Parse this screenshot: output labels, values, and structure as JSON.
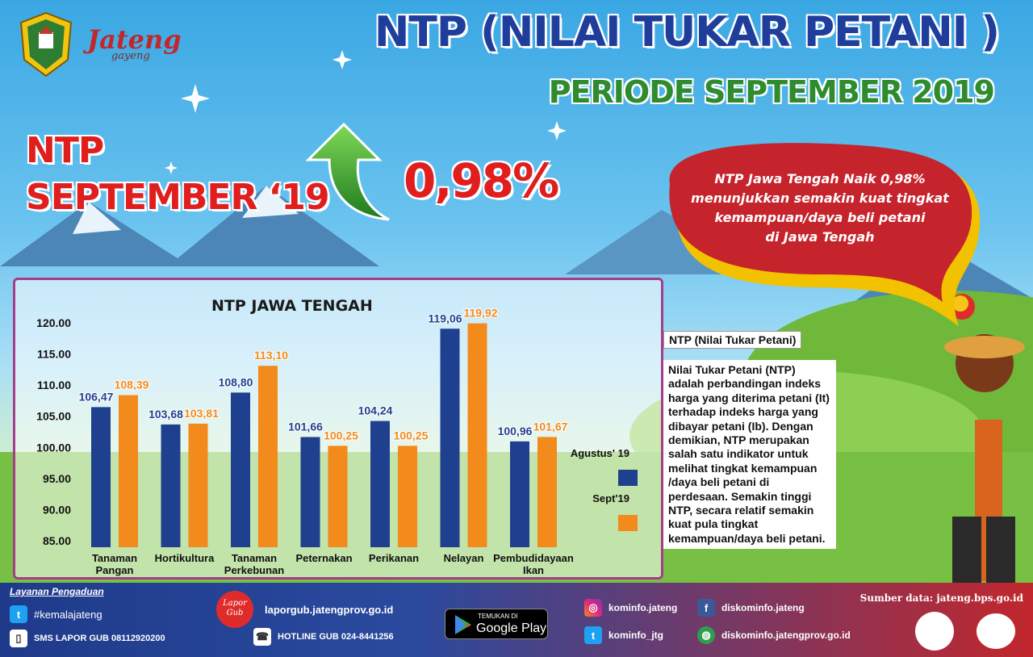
{
  "header": {
    "title": "NTP  (NILAI TUKAR PETANI )",
    "period": "PERIODE  SEPTEMBER 2019",
    "logo_text": "Jateng",
    "logo_sub": "gayeng"
  },
  "headline": {
    "label_line1": "NTP",
    "label_line2": "SEPTEMBER ‘19",
    "change": "0,98%"
  },
  "bubble": {
    "text_lines": [
      "NTP Jawa Tengah Naik 0,98%",
      "menunjukkan semakin kuat tingkat",
      "kemampuan/daya beli petani",
      "di Jawa Tengah"
    ]
  },
  "description": {
    "heading": "NTP (Nilai Tukar Petani)",
    "body": "Nilai Tukar Petani (NTP) adalah perbandingan indeks harga yang diterima petani (It) terhadap indeks harga yang dibayar petani (Ib). Dengan  demikian, NTP merupakan salah satu indikator untuk melihat tingkat kemampuan /daya beli petani  di perdesaan. Semakin tinggi NTP, secara relatif  semakin kuat pula tingkat kemampuan/daya beli  petani."
  },
  "chart_data": {
    "type": "bar",
    "title": "NTP JAWA TENGAH",
    "categories": [
      [
        "Tanaman",
        "Pangan"
      ],
      [
        "Hortikultura"
      ],
      [
        "Tanaman",
        "Perkebunan"
      ],
      [
        "Peternakan"
      ],
      [
        "Perikanan"
      ],
      [
        "Nelayan"
      ],
      [
        "Pembudidayaan",
        "Ikan"
      ]
    ],
    "series": [
      {
        "name": "Agustus' 19",
        "color": "#1f3f8f",
        "values": [
          106.47,
          103.68,
          108.8,
          101.66,
          104.24,
          119.06,
          100.96
        ],
        "labels": [
          "106,47",
          "103,68",
          "108,80",
          "101,66",
          "104,24",
          "119,06",
          "100,96"
        ]
      },
      {
        "name": "Sept'19",
        "color": "#f28a1c",
        "values": [
          108.39,
          103.81,
          113.1,
          100.25,
          100.25,
          119.92,
          101.67
        ],
        "labels": [
          "108,39",
          "103,81",
          "113,10",
          "100,25",
          "100,25",
          "119,92",
          "101,67"
        ]
      }
    ],
    "ylim": [
      85,
      120
    ],
    "yticks": [
      "120.00",
      "115.00",
      "110.00",
      "105.00",
      "100.00",
      "95.00",
      "90.00",
      "85.00"
    ],
    "ytick_values": [
      120,
      115,
      110,
      105,
      100,
      95,
      90,
      85
    ],
    "legend_position": "right"
  },
  "footer": {
    "layanan": "Layanan Pengaduan",
    "twitter_tag": "#kemalajateng",
    "sms": "SMS LAPOR GUB 08112920200",
    "lapor_logo": "Lapor Gub",
    "lapor_url": "laporgub.jatengprov.go.id",
    "hotline": "HOTLINE GUB 024-8441256",
    "gplay_small": "TEMUKAN DI",
    "gplay_big": "Google Play",
    "instagram": "kominfo.jateng",
    "twitter2": "kominfo_jtg",
    "facebook": "diskominfo.jateng",
    "website": "diskominfo.jatengprov.go.id",
    "sumber": "Sumber data: jateng.bps.go.id"
  },
  "colors": {
    "title_blue": "#1f3d9a",
    "period_green": "#2e8b2e",
    "headline_red": "#e01e1e"
  }
}
